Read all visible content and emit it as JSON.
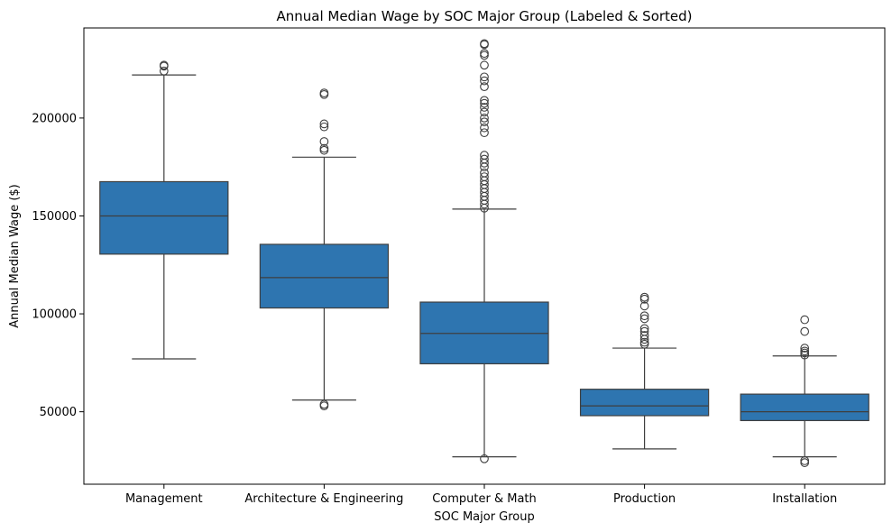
{
  "chart_data": {
    "type": "boxplot",
    "title": "Annual Median Wage by SOC Major Group (Labeled & Sorted)",
    "xlabel": "SOC Major Group",
    "ylabel": "Annual Median Wage ($)",
    "ylim": [
      13000,
      246000
    ],
    "yticks": [
      50000,
      100000,
      150000,
      200000
    ],
    "grid": false,
    "box_color": "#2e75b0",
    "line_color": "#3f3f3f",
    "categories": [
      "Management",
      "Architecture & Engineering",
      "Computer & Math",
      "Production",
      "Installation"
    ],
    "boxes": [
      {
        "category": "Management",
        "whisker_low": 77000,
        "q1": 130500,
        "median": 150000,
        "q3": 167500,
        "whisker_high": 222000,
        "outliers": [
          224000,
          226500,
          227000
        ]
      },
      {
        "category": "Architecture & Engineering",
        "whisker_low": 56000,
        "q1": 103000,
        "median": 118500,
        "q3": 135500,
        "whisker_high": 180000,
        "outliers": [
          53000,
          53800,
          183500,
          184500,
          188000,
          195500,
          197000,
          212000,
          212800
        ]
      },
      {
        "category": "Computer & Math",
        "whisker_low": 27000,
        "q1": 74500,
        "median": 90000,
        "q3": 106000,
        "whisker_high": 153500,
        "outliers": [
          26000,
          154000,
          156000,
          158000,
          160000,
          162000,
          164000,
          166000,
          168000,
          170000,
          172000,
          175000,
          177000,
          179000,
          181000,
          192500,
          195000,
          198000,
          200000,
          203000,
          205500,
          207500,
          209000,
          216000,
          219000,
          221000,
          227000,
          232000,
          233000,
          237500,
          238000
        ]
      },
      {
        "category": "Production",
        "whisker_low": 31000,
        "q1": 48000,
        "median": 53000,
        "q3": 61500,
        "whisker_high": 82500,
        "outliers": [
          84500,
          85500,
          87000,
          89000,
          91000,
          92500,
          97500,
          99000,
          104000,
          107500,
          108500
        ]
      },
      {
        "category": "Installation",
        "whisker_low": 27000,
        "q1": 45500,
        "median": 50000,
        "q3": 59000,
        "whisker_high": 78500,
        "outliers": [
          24000,
          25000,
          79000,
          80000,
          81000,
          82500,
          91000,
          97000
        ]
      }
    ]
  }
}
